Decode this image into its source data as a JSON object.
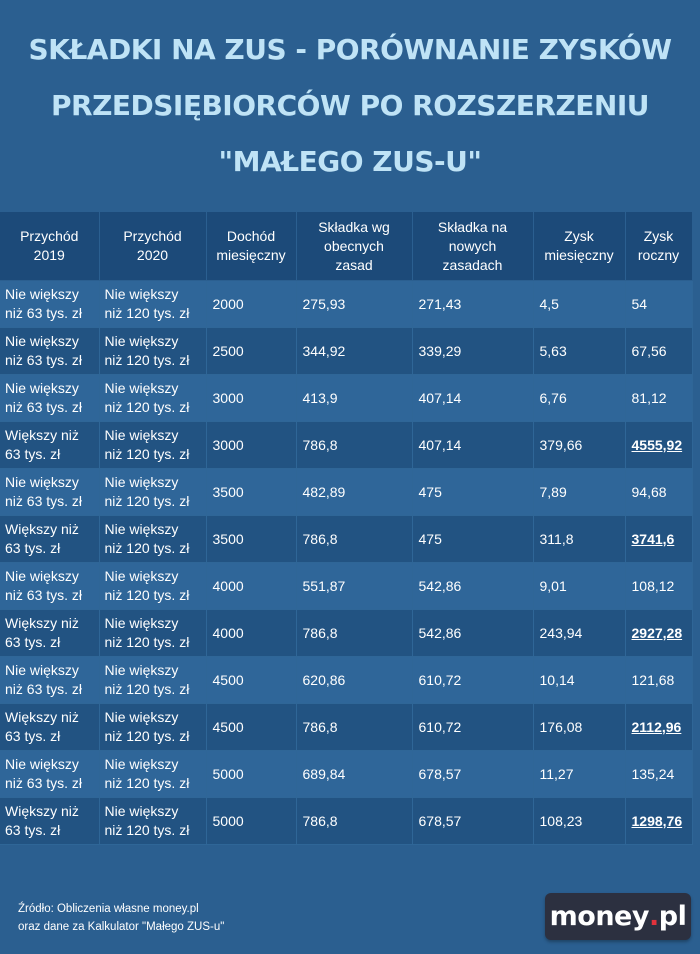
{
  "title": {
    "line1": "SKŁADKI NA ZUS - PORÓWNANIE ZYSKÓW",
    "line2": "PRZEDSIĘBIORCÓW PO ROZSZERZENIU",
    "line3": "\"MAŁEGO ZUS-U\""
  },
  "table": {
    "headers": [
      [
        "Przychód",
        "2019"
      ],
      [
        "Przychód",
        "2020"
      ],
      [
        "Dochód",
        "miesięczny"
      ],
      [
        "Składka wg",
        "obecnych",
        "zasad"
      ],
      [
        "Składka na",
        "nowych",
        "zasadach"
      ],
      [
        "Zysk",
        "miesięczny"
      ],
      [
        "Zysk",
        "roczny"
      ]
    ],
    "rows": [
      {
        "p2019": [
          "Nie większy",
          "niż 63 tys. zł"
        ],
        "p2020": [
          "Nie większy",
          "niż 120 tys. zł"
        ],
        "dochod": "2000",
        "obecna": "275,93",
        "nowa": "271,43",
        "mies": "4,5",
        "roczny": "54",
        "highlight": false
      },
      {
        "p2019": [
          "Nie większy",
          "niż 63 tys. zł"
        ],
        "p2020": [
          "Nie większy",
          "niż 120 tys. zł"
        ],
        "dochod": "2500",
        "obecna": "344,92",
        "nowa": "339,29",
        "mies": "5,63",
        "roczny": "67,56",
        "highlight": false
      },
      {
        "p2019": [
          "Nie większy",
          "niż 63 tys. zł"
        ],
        "p2020": [
          "Nie większy",
          "niż 120 tys. zł"
        ],
        "dochod": "3000",
        "obecna": "413,9",
        "nowa": "407,14",
        "mies": "6,76",
        "roczny": "81,12",
        "highlight": false
      },
      {
        "p2019": [
          "Większy niż",
          "63 tys. zł"
        ],
        "p2020": [
          "Nie większy",
          "niż 120 tys. zł"
        ],
        "dochod": "3000",
        "obecna": "786,8",
        "nowa": "407,14",
        "mies": "379,66",
        "roczny": "4555,92",
        "highlight": true
      },
      {
        "p2019": [
          "Nie większy",
          "niż 63 tys. zł"
        ],
        "p2020": [
          "Nie większy",
          "niż 120 tys. zł"
        ],
        "dochod": "3500",
        "obecna": "482,89",
        "nowa": "475",
        "mies": "7,89",
        "roczny": "94,68",
        "highlight": false
      },
      {
        "p2019": [
          "Większy niż",
          "63 tys. zł"
        ],
        "p2020": [
          "Nie większy",
          "niż 120 tys. zł"
        ],
        "dochod": "3500",
        "obecna": "786,8",
        "nowa": "475",
        "mies": "311,8",
        "roczny": "3741,6",
        "highlight": true
      },
      {
        "p2019": [
          "Nie większy",
          "niż 63 tys. zł"
        ],
        "p2020": [
          "Nie większy",
          "niż 120 tys. zł"
        ],
        "dochod": "4000",
        "obecna": "551,87",
        "nowa": "542,86",
        "mies": "9,01",
        "roczny": "108,12",
        "highlight": false
      },
      {
        "p2019": [
          "Większy niż",
          "63 tys. zł"
        ],
        "p2020": [
          "Nie większy",
          "niż 120 tys. zł"
        ],
        "dochod": "4000",
        "obecna": "786,8",
        "nowa": "542,86",
        "mies": "243,94",
        "roczny": "2927,28",
        "highlight": true
      },
      {
        "p2019": [
          "Nie większy",
          "niż 63 tys. zł"
        ],
        "p2020": [
          "Nie większy",
          "niż 120 tys. zł"
        ],
        "dochod": "4500",
        "obecna": "620,86",
        "nowa": "610,72",
        "mies": "10,14",
        "roczny": "121,68",
        "highlight": false
      },
      {
        "p2019": [
          "Większy niż",
          "63 tys. zł"
        ],
        "p2020": [
          "Nie większy",
          "niż 120 tys. zł"
        ],
        "dochod": "4500",
        "obecna": "786,8",
        "nowa": "610,72",
        "mies": "176,08",
        "roczny": "2112,96",
        "highlight": true
      },
      {
        "p2019": [
          "Nie większy",
          "niż 63 tys. zł"
        ],
        "p2020": [
          "Nie większy",
          "niż 120 tys. zł"
        ],
        "dochod": "5000",
        "obecna": "689,84",
        "nowa": "678,57",
        "mies": "11,27",
        "roczny": "135,24",
        "highlight": false
      },
      {
        "p2019": [
          "Większy niż",
          "63 tys. zł"
        ],
        "p2020": [
          "Nie większy",
          "niż 120 tys. zł"
        ],
        "dochod": "5000",
        "obecna": "786,8",
        "nowa": "678,57",
        "mies": "108,23",
        "roczny": "1298,76",
        "highlight": true
      }
    ]
  },
  "source": {
    "line1": "Źródło: Obliczenia własne money.pl",
    "line2": "oraz dane za Kalkulator \"Małego ZUS-u\""
  },
  "logo": {
    "part1": "money",
    "dot": ".",
    "part2": "pl"
  },
  "colors": {
    "background": "#2b5f90",
    "title": "#bfe3f6",
    "header_bg": "#1c4a79",
    "row_light": "#2f6699",
    "row_dark": "#225382",
    "logo_bg": "#2c3040",
    "logo_dot": "#e2323c"
  }
}
